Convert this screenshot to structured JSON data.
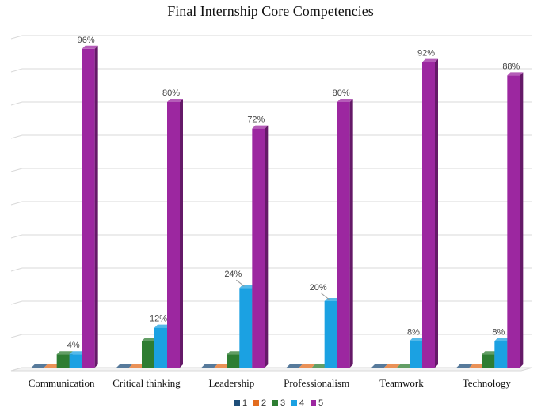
{
  "chart_data": {
    "type": "bar",
    "title": "Final Internship Core Competencies",
    "categories": [
      "Communication",
      "Critical thinking",
      "Leadership",
      "Professionalism",
      "Teamwork",
      "Technology"
    ],
    "series": [
      {
        "name": "1",
        "color": "#1F4E79",
        "values": [
          0,
          0,
          0,
          0,
          0,
          0
        ],
        "labels": [
          "",
          "",
          "",
          "",
          "",
          ""
        ]
      },
      {
        "name": "2",
        "color": "#E36C1F",
        "values": [
          0,
          0,
          0,
          0,
          0,
          0
        ],
        "labels": [
          "",
          "",
          "",
          "",
          "",
          ""
        ]
      },
      {
        "name": "3",
        "color": "#2E7D32",
        "values": [
          4,
          8,
          4,
          0,
          0,
          4
        ],
        "labels": [
          "",
          "",
          "",
          "",
          "",
          ""
        ]
      },
      {
        "name": "4",
        "color": "#1BA1E2",
        "values": [
          4,
          12,
          24,
          20,
          8,
          8
        ],
        "labels": [
          "4%",
          "12%",
          "24%",
          "20%",
          "8%",
          "8%"
        ]
      },
      {
        "name": "5",
        "color": "#9C27A0",
        "values": [
          96,
          80,
          72,
          80,
          92,
          88
        ],
        "labels": [
          "96%",
          "80%",
          "72%",
          "80%",
          "92%",
          "88%"
        ]
      }
    ],
    "ylim": [
      0,
      100
    ],
    "xlabel": "",
    "ylabel": "",
    "grid": true,
    "legend": "bottom"
  }
}
